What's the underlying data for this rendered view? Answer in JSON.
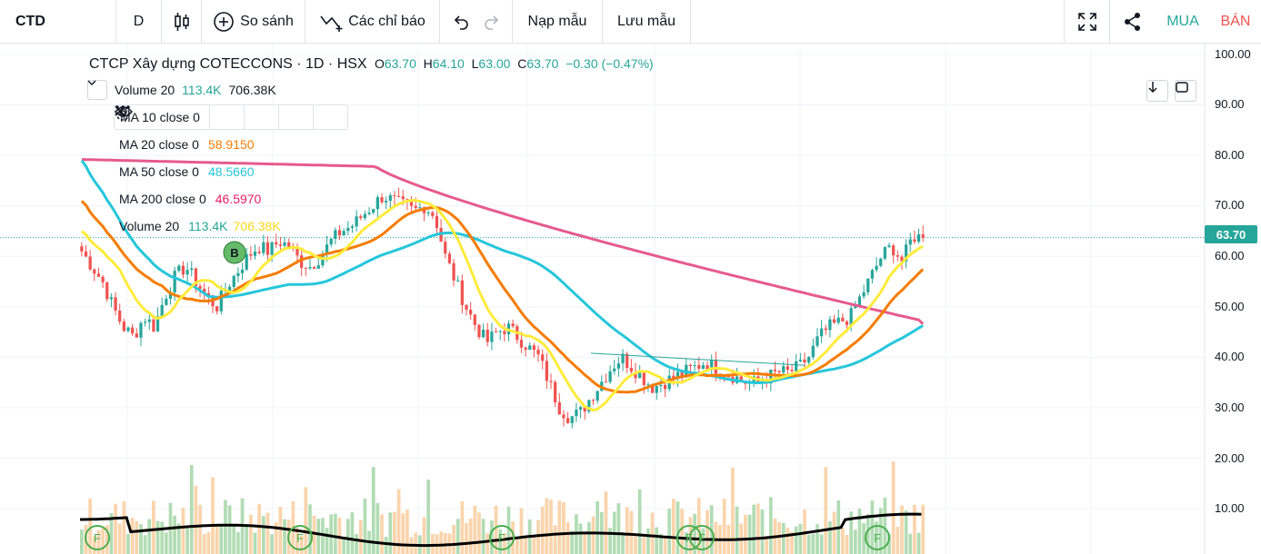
{
  "toolbar": {
    "symbol": "CTD",
    "interval": "D",
    "compare_label": "So sánh",
    "indicators_label": "Các chỉ báo",
    "load_template_label": "Nạp mẫu",
    "save_template_label": "Lưu mẫu",
    "buy_label": "MUA",
    "sell_label": "BÁN",
    "icons": [
      "candles-icon",
      "plus-circle-icon",
      "indicators-icon",
      "undo-icon",
      "redo-icon",
      "fullscreen-icon",
      "share-icon"
    ]
  },
  "legend": {
    "title": "CTCP Xây dựng COTECCONS · 1D · HSX",
    "open_label": "O",
    "open": "63.70",
    "high_label": "H",
    "high": "64.10",
    "low_label": "L",
    "low": "63.00",
    "close_label": "C",
    "close": "63.70",
    "change": "−0.30 (−0.47%)",
    "volume_header": {
      "label": "Volume 20",
      "v1": "113.4K",
      "v2": "706.38K"
    },
    "indicators": [
      {
        "label": "MA 10 close 0",
        "value": "",
        "color": "#ffeb3b"
      },
      {
        "label": "MA 20 close 0",
        "value": "58.9150",
        "color": "#f57c00"
      },
      {
        "label": "MA 50 close 0",
        "value": "48.5660",
        "color": "#26c6da"
      },
      {
        "label": "MA 200 close 0",
        "value": "46.5970",
        "color": "#e91e63"
      },
      {
        "label": "Volume 20",
        "value": "113.4K",
        "value2": "706.38K",
        "color": "#26a69a",
        "color2": "#f9d71c"
      }
    ]
  },
  "price_axis": {
    "ticks": [
      "100.00",
      "90.00",
      "80.00",
      "70.00",
      "60.00",
      "50.00",
      "40.00",
      "30.00",
      "20.00",
      "10.00"
    ],
    "last_price": "63.70",
    "last_price_color": "#26a69a"
  },
  "markers": {
    "buy_marker": "B",
    "event_marker": "F"
  },
  "chart_data": {
    "type": "candlestick",
    "symbol": "CTD",
    "interval": "1D",
    "ylim": [
      0,
      100
    ],
    "close_approx": [
      61,
      58,
      55,
      50,
      46,
      44,
      48,
      46,
      52,
      56,
      58,
      55,
      52,
      50,
      54,
      57,
      60,
      62,
      61,
      63,
      62,
      59,
      58,
      60,
      63,
      65,
      66,
      68,
      70,
      72,
      71,
      70,
      69,
      70,
      68,
      60,
      55,
      50,
      46,
      43,
      45,
      46,
      44,
      42,
      40,
      35,
      30,
      28,
      29,
      32,
      35,
      38,
      40,
      38,
      36,
      34,
      35,
      36,
      37,
      38,
      39,
      38,
      37,
      36,
      35,
      35,
      36,
      37,
      37,
      38,
      40,
      44,
      46,
      47,
      48,
      52,
      56,
      60,
      62,
      59,
      64,
      63.7
    ],
    "ma": {
      "MA10": 61.5,
      "MA20": 58.915,
      "MA50": 48.566,
      "MA200": 46.597
    },
    "volume_ma": "113.4K",
    "volume_last": "706.38K"
  }
}
